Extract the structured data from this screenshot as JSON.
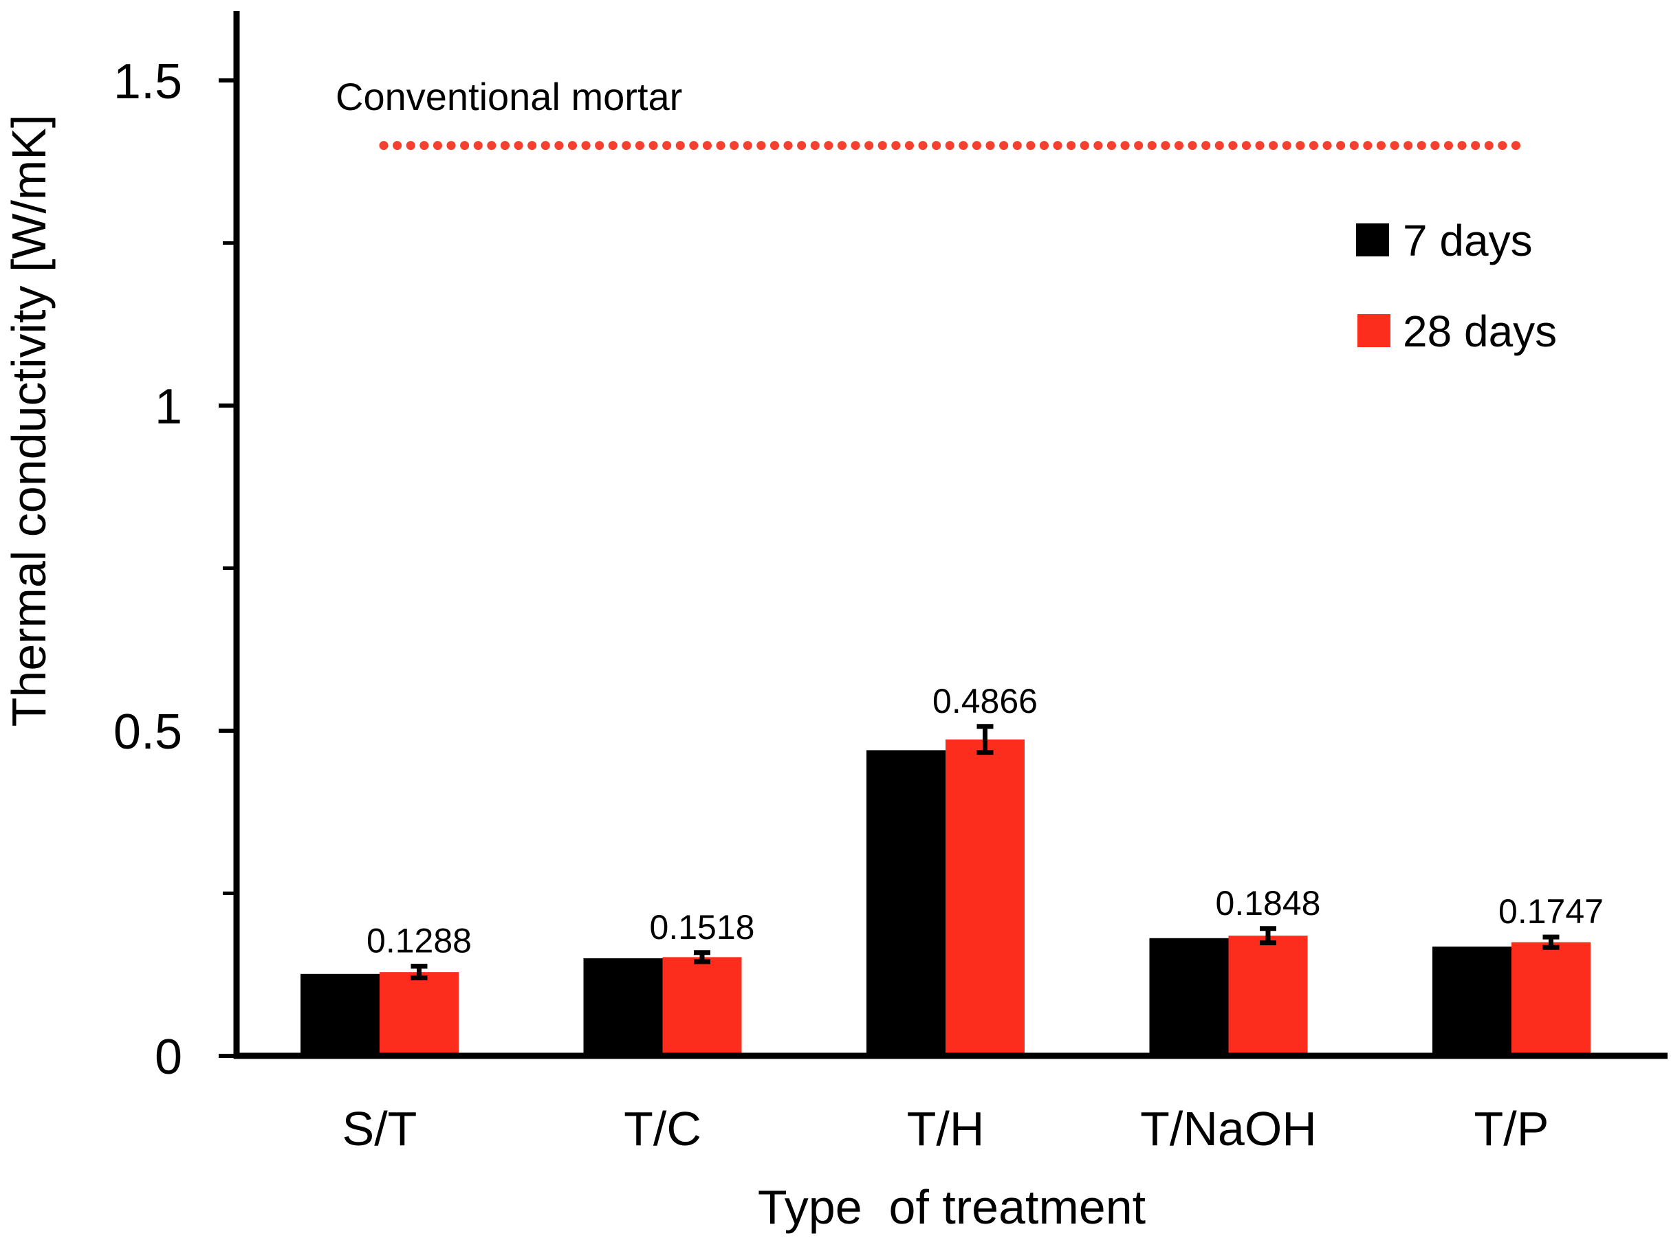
{
  "chart_data": {
    "type": "bar",
    "title": "",
    "xlabel": "Type  of treatment",
    "ylabel": "Thermal conductivity [W/mK]",
    "categories": [
      "S/T",
      "T/C",
      "T/H",
      "T/NaOH",
      "T/P"
    ],
    "series": [
      {
        "name": "7 days",
        "color": "#000000",
        "values": [
          0.126,
          0.15,
          0.47,
          0.181,
          0.168
        ]
      },
      {
        "name": "28 days",
        "color": "#fd2d1e",
        "values": [
          0.1288,
          0.1518,
          0.4866,
          0.1848,
          0.1747
        ],
        "value_labels": [
          "0.1288",
          "0.1518",
          "0.4866",
          "0.1848",
          "0.1747"
        ],
        "error_bars": [
          0.009,
          0.007,
          0.02,
          0.011,
          0.008
        ]
      }
    ],
    "reference_line": {
      "label": "Conventional mortar",
      "value": 1.4,
      "color": "#f5402f",
      "style": "dotted"
    },
    "y_axis": {
      "ticks": [
        {
          "value": 0,
          "label": "0"
        },
        {
          "value": 0.5,
          "label": "0.5"
        },
        {
          "value": 1,
          "label": "1"
        },
        {
          "value": 1.5,
          "label": "1.5"
        }
      ],
      "minor_ticks": [
        0.25,
        0.75,
        1.25
      ],
      "range": [
        0,
        1.6
      ]
    },
    "legend": {
      "position": "upper right",
      "entries": [
        "7 days",
        "28 days"
      ]
    },
    "grid": false
  }
}
